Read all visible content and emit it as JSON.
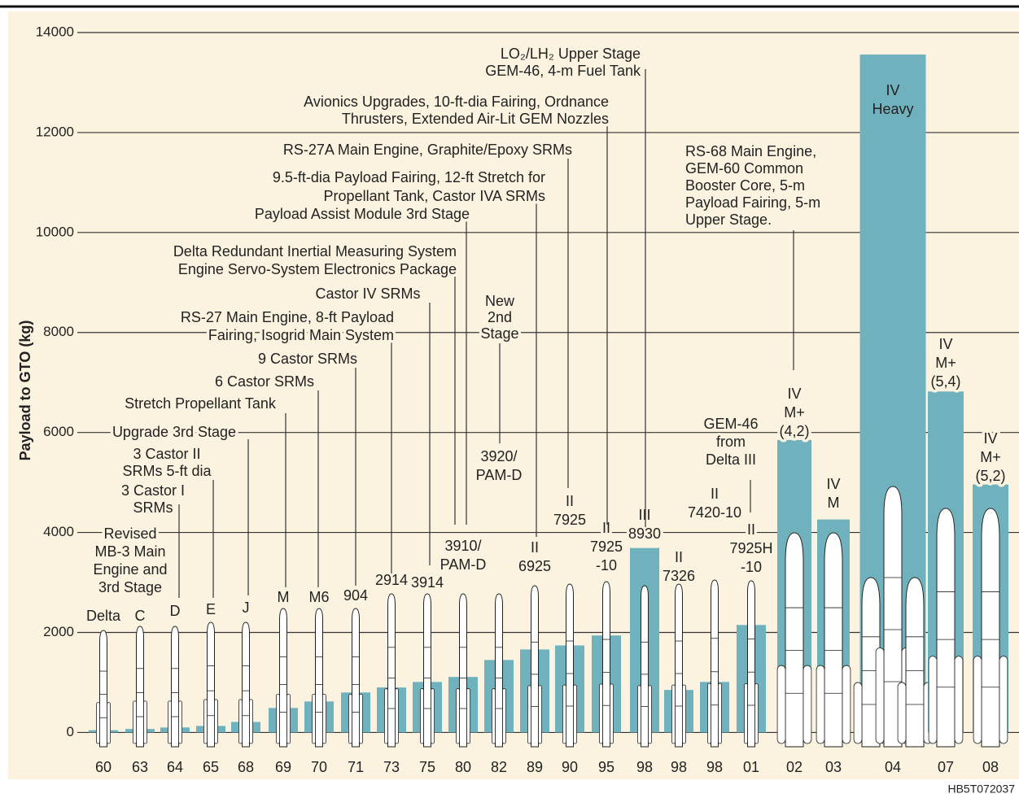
{
  "chart_data": {
    "type": "bar",
    "ylabel": "Payload to GTO (kg)",
    "footer": "HB5T072037",
    "categories": [
      "60",
      "63",
      "64",
      "65",
      "68",
      "69",
      "70",
      "71",
      "73",
      "75",
      "80",
      "82",
      "89",
      "90",
      "95",
      "98",
      "98",
      "98",
      "01",
      "02",
      "03",
      "04",
      "07",
      "08"
    ],
    "values": [
      45,
      70,
      100,
      130,
      210,
      490,
      620,
      800,
      900,
      1010,
      1110,
      1450,
      1660,
      1740,
      1940,
      3690,
      850,
      1010,
      2150,
      5850,
      4260,
      13560,
      6820,
      4960
    ],
    "color": "#6fb2bd",
    "ylim": [
      -400,
      14000
    ],
    "yticks": [
      0,
      2000,
      4000,
      6000,
      8000,
      10000,
      12000,
      14000
    ],
    "grid": true,
    "vehicle_labels": [
      [
        "Delta"
      ],
      [
        "C"
      ],
      [
        "D"
      ],
      [
        "E"
      ],
      [
        "J"
      ],
      [
        "M"
      ],
      [
        "M6"
      ],
      [
        "904"
      ],
      [
        "2914"
      ],
      [
        "3914"
      ],
      [
        "3910/",
        "PAM-D"
      ],
      [
        "3920/",
        "PAM-D"
      ],
      [
        "II",
        "6925"
      ],
      [
        "II",
        "7925"
      ],
      [
        "II",
        "7925",
        "-10"
      ],
      [
        "III",
        "8930"
      ],
      [
        "II",
        "7326"
      ],
      [
        "II",
        "7420-10"
      ],
      [
        "II",
        "7925H",
        "-10"
      ],
      [
        "IV",
        "M+",
        "(4,2)"
      ],
      [
        "IV",
        "M"
      ],
      [
        "IV",
        "Heavy"
      ],
      [
        "IV",
        "M+",
        "(5,4)"
      ],
      [
        "IV",
        "M+",
        "(5,2)"
      ]
    ],
    "annotations": [
      {
        "lines": [
          "LO₂/LH₂ Upper Stage",
          "GEM-46, 4-m Fuel Tank"
        ]
      },
      {
        "lines": [
          "Avionics Upgrades, 10-ft-dia Fairing, Ordnance",
          "Thrusters, Extended Air-Lit GEM Nozzles"
        ]
      },
      {
        "lines": [
          "RS-27A Main Engine, Graphite/Epoxy SRMs"
        ]
      },
      {
        "lines": [
          "9.5-ft-dia Payload Fairing, 12-ft Stretch for",
          "Propellant Tank, Castor IVA SRMs"
        ]
      },
      {
        "lines": [
          "Payload Assist Module 3rd Stage"
        ]
      },
      {
        "lines": [
          "Delta Redundant Inertial Measuring System",
          "Engine Servo-System Electronics Package"
        ]
      },
      {
        "lines": [
          "Castor IV SRMs"
        ]
      },
      {
        "lines": [
          "New",
          "2nd",
          "Stage"
        ]
      },
      {
        "lines": [
          "RS-27 Main Engine, 8-ft Payload",
          "Fairing, Isogrid Main System"
        ]
      },
      {
        "lines": [
          "9 Castor SRMs"
        ]
      },
      {
        "lines": [
          "6 Castor SRMs"
        ]
      },
      {
        "lines": [
          "Stretch Propellant Tank"
        ]
      },
      {
        "lines": [
          "Upgrade 3rd Stage"
        ]
      },
      {
        "lines": [
          "3 Castor II",
          "SRMs 5-ft dia"
        ]
      },
      {
        "lines": [
          "3 Castor I",
          "SRMs"
        ]
      },
      {
        "lines": [
          "Revised",
          "MB-3 Main",
          "Engine and",
          "3rd Stage"
        ]
      },
      {
        "lines": [
          "GEM-46",
          "from",
          "Delta III"
        ]
      },
      {
        "lines": [
          "RS-68 Main Engine,",
          "GEM-60 Common",
          "Booster Core, 5-m",
          "Payload Fairing, 5-m",
          "Upper Stage."
        ]
      }
    ]
  }
}
